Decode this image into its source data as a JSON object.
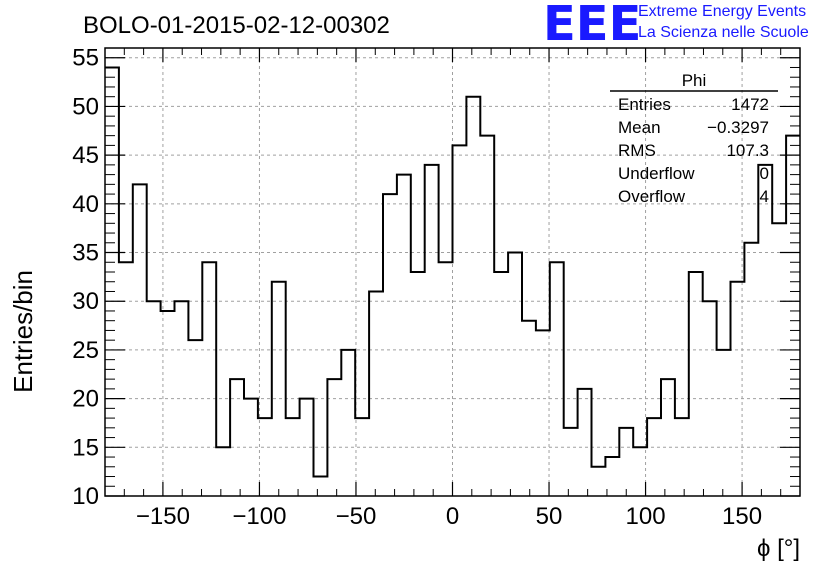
{
  "title": "BOLO-01-2015-02-12-00302",
  "logo": {
    "letters": "EEE",
    "line1": "Extreme Energy Events",
    "line2": "La Scienza nelle Scuole",
    "color": "#1a1aff"
  },
  "stats": {
    "name": "Phi",
    "rows": [
      {
        "label": "Entries",
        "value": "1472"
      },
      {
        "label": "Mean",
        "value": "−0.3297"
      },
      {
        "label": "RMS",
        "value": "107.3"
      },
      {
        "label": "Underflow",
        "value": "0"
      },
      {
        "label": "Overflow",
        "value": "4"
      }
    ]
  },
  "chart_data": {
    "type": "histogram",
    "title": "BOLO-01-2015-02-12-00302",
    "xlabel": "ϕ [°]",
    "ylabel": "Entries/bin",
    "xlim": [
      -180,
      180
    ],
    "ylim": [
      10,
      56
    ],
    "bin_width": 7.2,
    "grid": true,
    "x_ticks": [
      -150,
      -100,
      -50,
      0,
      50,
      100,
      150
    ],
    "x_tick_labels": [
      "−150",
      "−100",
      "−50",
      "0",
      "50",
      "100",
      "150"
    ],
    "y_ticks": [
      10,
      15,
      20,
      25,
      30,
      35,
      40,
      45,
      50,
      55
    ],
    "y_tick_labels": [
      "10",
      "15",
      "20",
      "25",
      "30",
      "35",
      "40",
      "45",
      "50",
      "55"
    ],
    "values": [
      54,
      34,
      42,
      30,
      29,
      30,
      26,
      34,
      15,
      22,
      20,
      18,
      32,
      18,
      20,
      12,
      22,
      25,
      18,
      31,
      41,
      43,
      33,
      44,
      34,
      46,
      51,
      47,
      33,
      35,
      28,
      27,
      34,
      17,
      21,
      13,
      14,
      17,
      15,
      18,
      22,
      18,
      33,
      30,
      25,
      32,
      36,
      44,
      38,
      47
    ],
    "line_color": "#000000"
  }
}
